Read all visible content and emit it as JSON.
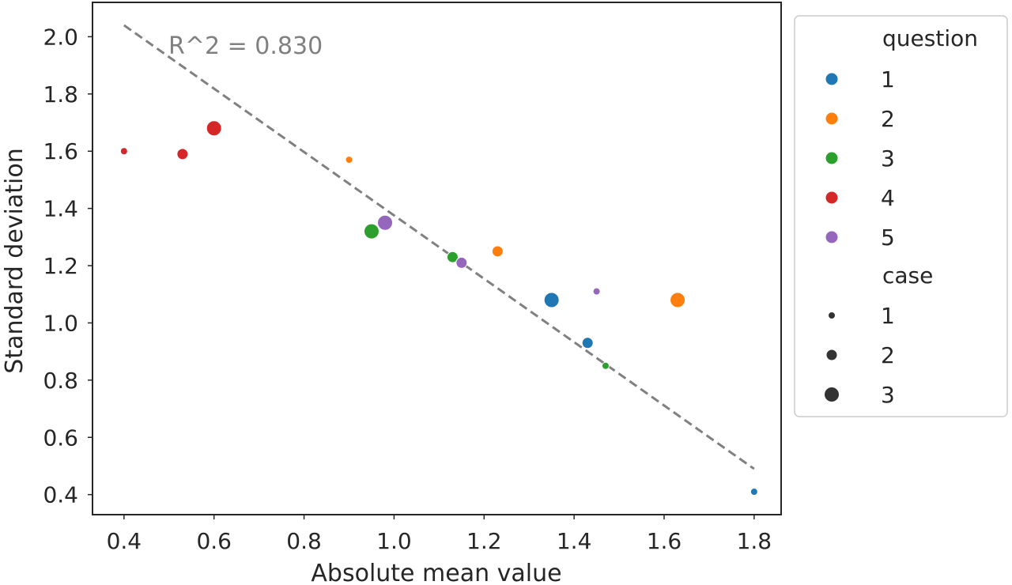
{
  "chart_data": {
    "type": "scatter",
    "title": "",
    "xlabel": "Absolute mean value",
    "ylabel": "Standard deviation",
    "xlim": [
      0.33,
      1.86
    ],
    "ylim": [
      0.33,
      2.12
    ],
    "xticks": [
      0.4,
      0.6,
      0.8,
      1.0,
      1.2,
      1.4,
      1.6,
      1.8
    ],
    "xtick_labels": [
      "0.4",
      "0.6",
      "0.8",
      "1.0",
      "1.2",
      "1.4",
      "1.6",
      "1.8"
    ],
    "yticks": [
      0.4,
      0.6,
      0.8,
      1.0,
      1.2,
      1.4,
      1.6,
      1.8,
      2.0
    ],
    "ytick_labels": [
      "0.4",
      "0.6",
      "0.8",
      "1.0",
      "1.2",
      "1.4",
      "1.6",
      "1.8",
      "2.0"
    ],
    "grid": false,
    "legend_position": "outside-right",
    "annotation": "R^2 = 0.830",
    "fit_line": {
      "style": "dashed",
      "color": "#808080",
      "x": [
        0.4,
        1.8
      ],
      "y": [
        2.04,
        0.49
      ]
    },
    "hue_legend": {
      "title": "question",
      "items": [
        {
          "label": "1",
          "color": "#1f77b4"
        },
        {
          "label": "2",
          "color": "#ff7f0e"
        },
        {
          "label": "3",
          "color": "#2ca02c"
        },
        {
          "label": "4",
          "color": "#d62728"
        },
        {
          "label": "5",
          "color": "#9467bd"
        }
      ]
    },
    "size_legend": {
      "title": "case",
      "items": [
        {
          "label": "1",
          "case": 1
        },
        {
          "label": "2",
          "case": 2
        },
        {
          "label": "3",
          "case": 3
        }
      ]
    },
    "points": [
      {
        "x": 1.8,
        "y": 0.41,
        "question": 1,
        "case": 1
      },
      {
        "x": 1.43,
        "y": 0.93,
        "question": 1,
        "case": 2
      },
      {
        "x": 1.35,
        "y": 1.08,
        "question": 1,
        "case": 3
      },
      {
        "x": 0.9,
        "y": 1.57,
        "question": 2,
        "case": 1
      },
      {
        "x": 1.23,
        "y": 1.25,
        "question": 2,
        "case": 2
      },
      {
        "x": 1.63,
        "y": 1.08,
        "question": 2,
        "case": 3
      },
      {
        "x": 1.47,
        "y": 0.85,
        "question": 3,
        "case": 1
      },
      {
        "x": 1.13,
        "y": 1.23,
        "question": 3,
        "case": 2
      },
      {
        "x": 0.95,
        "y": 1.32,
        "question": 3,
        "case": 3
      },
      {
        "x": 0.4,
        "y": 1.6,
        "question": 4,
        "case": 1
      },
      {
        "x": 0.53,
        "y": 1.59,
        "question": 4,
        "case": 2
      },
      {
        "x": 0.6,
        "y": 1.68,
        "question": 4,
        "case": 3
      },
      {
        "x": 1.45,
        "y": 1.11,
        "question": 5,
        "case": 1
      },
      {
        "x": 1.15,
        "y": 1.21,
        "question": 5,
        "case": 2
      },
      {
        "x": 0.98,
        "y": 1.35,
        "question": 5,
        "case": 3
      }
    ]
  }
}
